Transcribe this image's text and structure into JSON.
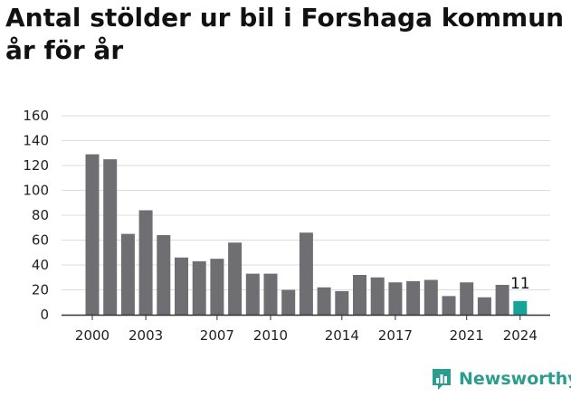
{
  "title_line1": "Antal stölder ur bil i Forshaga kommun",
  "title_line2": "år för år",
  "brand": {
    "name": "Newsworthy",
    "icon": "newsworthy-logo-icon",
    "color": "#2a9d8f"
  },
  "chart_data": {
    "type": "bar",
    "title": "Antal stölder ur bil i Forshaga kommun år för år",
    "xlabel": "",
    "ylabel": "",
    "ylim": [
      0,
      160
    ],
    "yticks": [
      0,
      20,
      40,
      60,
      80,
      100,
      120,
      140,
      160
    ],
    "grid": true,
    "categories": [
      2000,
      2001,
      2002,
      2003,
      2004,
      2005,
      2006,
      2007,
      2008,
      2009,
      2010,
      2011,
      2012,
      2013,
      2014,
      2015,
      2016,
      2017,
      2018,
      2019,
      2020,
      2021,
      2022,
      2023,
      2024
    ],
    "values": [
      129,
      125,
      65,
      84,
      64,
      46,
      43,
      45,
      58,
      33,
      33,
      20,
      66,
      22,
      19,
      32,
      30,
      26,
      27,
      28,
      15,
      26,
      14,
      24,
      11
    ],
    "xticks_shown": [
      "2000",
      "2003",
      "2007",
      "2010",
      "2014",
      "2017",
      "2021",
      "2024"
    ],
    "bar_color": "#6f6e73",
    "highlight_color": "#17a398",
    "highlight_label": "11"
  }
}
